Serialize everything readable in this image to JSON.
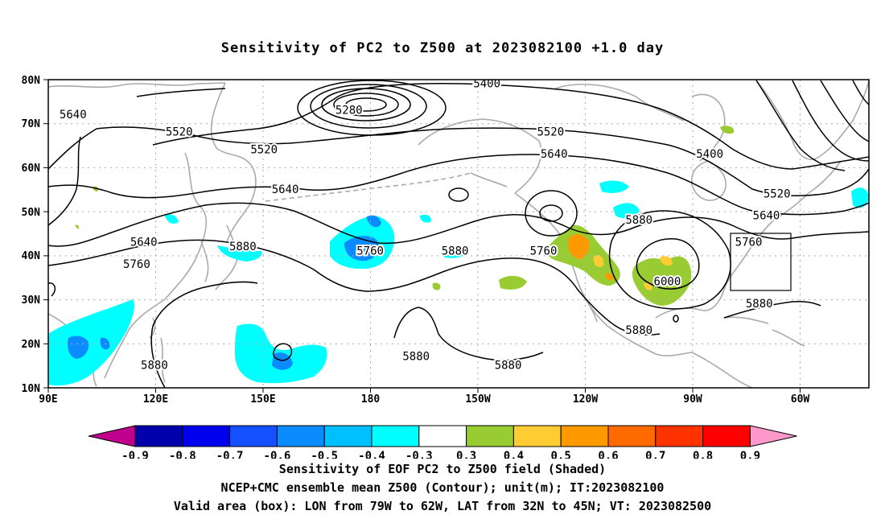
{
  "title": "Sensitivity of PC2 to Z500 at 2023082100 +1.0 day",
  "axes": {
    "lat_labels": [
      "80N",
      "70N",
      "60N",
      "50N",
      "40N",
      "30N",
      "20N",
      "10N"
    ],
    "lon_labels": [
      "90E",
      "120E",
      "150E",
      "180",
      "150W",
      "120W",
      "90W",
      "60W"
    ]
  },
  "contour_labels": [
    {
      "text": "5640",
      "lon": 97,
      "lat": 72
    },
    {
      "text": "5520",
      "lon": 127,
      "lat": 68
    },
    {
      "text": "5520",
      "lon": 151,
      "lat": 64
    },
    {
      "text": "5400",
      "lon": -146,
      "lat": 79
    },
    {
      "text": "5280",
      "lon": 175,
      "lat": 73
    },
    {
      "text": "5520",
      "lon": -128,
      "lat": 68
    },
    {
      "text": "5640",
      "lon": -127,
      "lat": 63
    },
    {
      "text": "5400",
      "lon": -83,
      "lat": 63
    },
    {
      "text": "5520",
      "lon": -64,
      "lat": 54
    },
    {
      "text": "5640",
      "lon": -67,
      "lat": 49
    },
    {
      "text": "5640",
      "lon": 157,
      "lat": 55
    },
    {
      "text": "5640",
      "lon": 117,
      "lat": 43
    },
    {
      "text": "5760",
      "lon": 115,
      "lat": 38
    },
    {
      "text": "5880",
      "lon": 145,
      "lat": 42
    },
    {
      "text": "5760",
      "lon": -179,
      "lat": 41
    },
    {
      "text": "5880",
      "lon": -155,
      "lat": 41
    },
    {
      "text": "5760",
      "lon": -130,
      "lat": 41
    },
    {
      "text": "5880",
      "lon": -103,
      "lat": 48
    },
    {
      "text": "5760",
      "lon": -72,
      "lat": 43
    },
    {
      "text": "6000",
      "lon": -95,
      "lat": 34
    },
    {
      "text": "5880",
      "lon": -69,
      "lat": 29
    },
    {
      "text": "5880",
      "lon": -103,
      "lat": 23
    },
    {
      "text": "5880",
      "lon": -166,
      "lat": 17
    },
    {
      "text": "5880",
      "lon": -140,
      "lat": 15
    },
    {
      "text": "5880",
      "lon": 120,
      "lat": 15
    }
  ],
  "colorbar": {
    "labels": [
      "-0.9",
      "-0.8",
      "-0.7",
      "-0.6",
      "-0.5",
      "-0.4",
      "-0.3",
      "0.3",
      "0.4",
      "0.5",
      "0.6",
      "0.7",
      "0.8",
      "0.9"
    ],
    "colors": [
      "#c0008c",
      "#0000aa",
      "#0000ee",
      "#1450ff",
      "#0a8cff",
      "#00c0ff",
      "#00ffff",
      "#ffffff",
      "#99cc33",
      "#ffcc33",
      "#ff9900",
      "#ff6a00",
      "#ff3300",
      "#ff0000",
      "#ff99cc"
    ]
  },
  "captions": {
    "line1": "Sensitivity of EOF PC2 to Z500 field (Shaded)",
    "line2": "NCEP+CMC ensemble mean Z500 (Contour); unit(m); IT:2023082100",
    "line3": "Valid area (box): LON from 79W to 62W, LAT from 32N to 45N; VT: 2023082500"
  }
}
